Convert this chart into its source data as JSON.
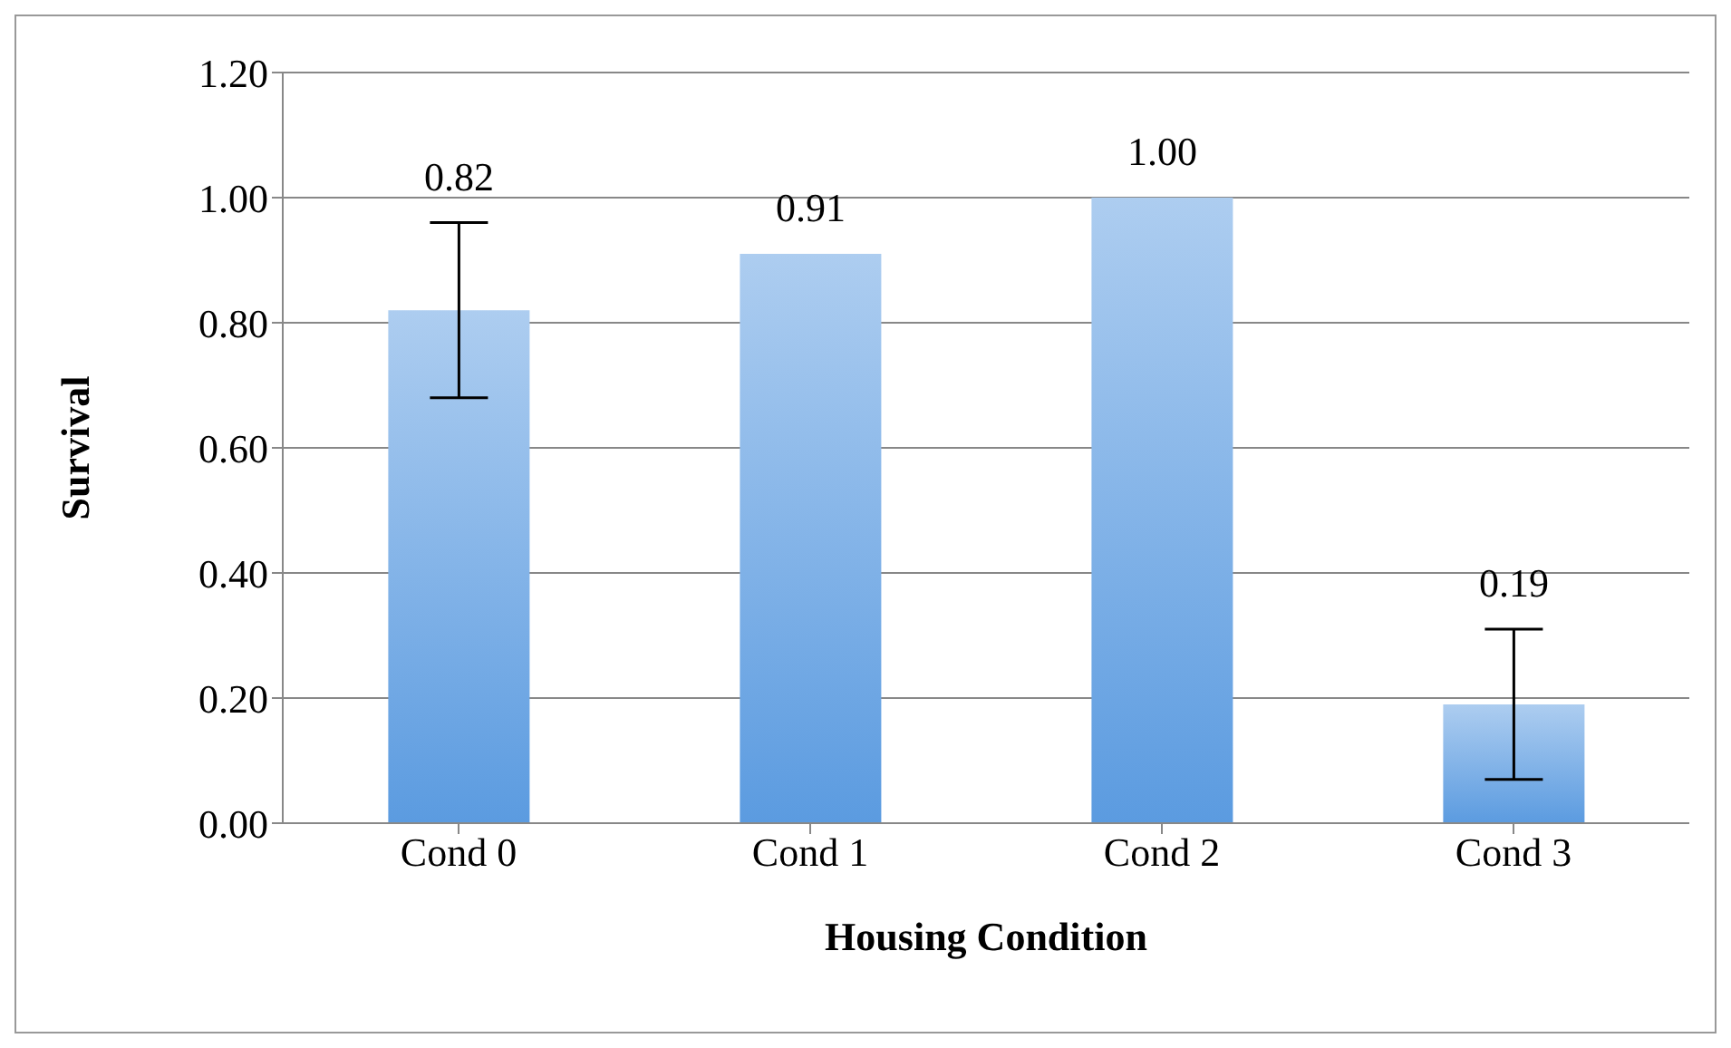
{
  "chart_data": {
    "type": "bar",
    "xlabel": "Housing Condition",
    "ylabel": "Survival",
    "categories": [
      "Cond 0",
      "Cond 1",
      "Cond 2",
      "Cond 3"
    ],
    "series": [
      {
        "color": "#5b9be0",
        "values": [
          0.82,
          0.91,
          1.0,
          0.19
        ],
        "errors": [
          0.14,
          0,
          0,
          0.12
        ],
        "value_labels": [
          "0.82",
          "0.91",
          "1.00",
          "0.19"
        ]
      }
    ],
    "ylim": [
      0,
      1.2
    ],
    "yticks": [
      {
        "value": 0,
        "label": "0.00"
      },
      {
        "value": 0.2,
        "label": "0.20"
      },
      {
        "value": 0.4,
        "label": "0.40"
      },
      {
        "value": 0.6,
        "label": "0.60"
      },
      {
        "value": 0.8,
        "label": "0.80"
      },
      {
        "value": 1.0,
        "label": "1.00"
      },
      {
        "value": 1.2,
        "label": "1.20"
      }
    ],
    "grid": "y",
    "legend": false
  }
}
